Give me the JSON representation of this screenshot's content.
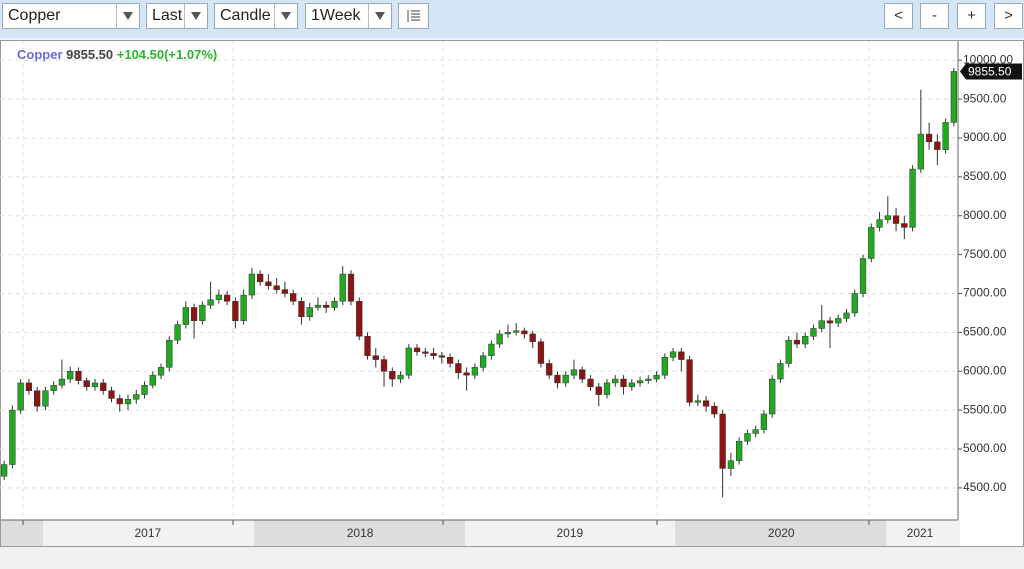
{
  "toolbar": {
    "symbol": "Copper",
    "field": "Last",
    "style": "Candle",
    "period": "1Week",
    "buttons": [
      "<",
      "-",
      "+",
      ">"
    ]
  },
  "chart_data": {
    "type": "candlestick",
    "title": "Copper",
    "last": {
      "value": 9855.5,
      "label": "9855.50"
    },
    "change": "+104.50(+1.07%)",
    "up_color": "#22a822",
    "down_color": "#8b1414",
    "grid": true,
    "ylim": [
      4100,
      10260
    ],
    "yticks": [
      {
        "value": 4500,
        "label": "4500.00"
      },
      {
        "value": 5000,
        "label": "5000.00"
      },
      {
        "value": 5500,
        "label": "5500.00"
      },
      {
        "value": 6000,
        "label": "6000.00"
      },
      {
        "value": 6500,
        "label": "6500.00"
      },
      {
        "value": 7000,
        "label": "7000.00"
      },
      {
        "value": 7500,
        "label": "7500.00"
      },
      {
        "value": 8000,
        "label": "8000.00"
      },
      {
        "value": 8500,
        "label": "8500.00"
      },
      {
        "value": 9000,
        "label": "9000.00"
      },
      {
        "value": 9500,
        "label": "9500.00"
      },
      {
        "value": 10000,
        "label": "10000.00"
      }
    ],
    "xlim": [
      0,
      116
    ],
    "xticks": [
      {
        "value": 17.9,
        "label": "2017"
      },
      {
        "value": 43.6,
        "label": "2018"
      },
      {
        "value": 69.0,
        "label": "2019"
      },
      {
        "value": 94.6,
        "label": "2020"
      },
      {
        "value": 111.4,
        "label": "2021"
      }
    ],
    "candles": [
      [
        4650,
        4850,
        4600,
        4800
      ],
      [
        4800,
        5560,
        4750,
        5500
      ],
      [
        5500,
        5900,
        5450,
        5850
      ],
      [
        5850,
        5900,
        5700,
        5750
      ],
      [
        5750,
        5800,
        5480,
        5550
      ],
      [
        5550,
        5800,
        5500,
        5750
      ],
      [
        5750,
        5870,
        5700,
        5820
      ],
      [
        5820,
        6150,
        5780,
        5900
      ],
      [
        5900,
        6060,
        5850,
        6000
      ],
      [
        6000,
        6050,
        5830,
        5880
      ],
      [
        5880,
        5920,
        5750,
        5800
      ],
      [
        5800,
        5900,
        5750,
        5850
      ],
      [
        5850,
        5900,
        5700,
        5750
      ],
      [
        5750,
        5800,
        5600,
        5650
      ],
      [
        5650,
        5700,
        5480,
        5580
      ],
      [
        5580,
        5700,
        5500,
        5640
      ],
      [
        5640,
        5760,
        5580,
        5700
      ],
      [
        5700,
        5870,
        5650,
        5820
      ],
      [
        5820,
        6000,
        5780,
        5950
      ],
      [
        5950,
        6100,
        5900,
        6050
      ],
      [
        6050,
        6450,
        6000,
        6400
      ],
      [
        6400,
        6650,
        6350,
        6600
      ],
      [
        6600,
        6900,
        6550,
        6820
      ],
      [
        6820,
        6870,
        6420,
        6650
      ],
      [
        6650,
        6900,
        6600,
        6850
      ],
      [
        6850,
        7150,
        6800,
        6920
      ],
      [
        6920,
        7050,
        6870,
        6980
      ],
      [
        6980,
        7030,
        6850,
        6900
      ],
      [
        6900,
        6950,
        6550,
        6650
      ],
      [
        6650,
        7050,
        6600,
        6980
      ],
      [
        6980,
        7330,
        6930,
        7250
      ],
      [
        7250,
        7300,
        7100,
        7150
      ],
      [
        7150,
        7250,
        7050,
        7100
      ],
      [
        7100,
        7200,
        7000,
        7050
      ],
      [
        7050,
        7150,
        6950,
        7000
      ],
      [
        7000,
        7050,
        6850,
        6900
      ],
      [
        6900,
        6950,
        6600,
        6700
      ],
      [
        6700,
        6880,
        6650,
        6820
      ],
      [
        6820,
        6950,
        6780,
        6850
      ],
      [
        6850,
        6900,
        6750,
        6820
      ],
      [
        6820,
        6950,
        6780,
        6900
      ],
      [
        6900,
        7350,
        6850,
        7250
      ],
      [
        7250,
        7300,
        6850,
        6900
      ],
      [
        6900,
        6950,
        6400,
        6450
      ],
      [
        6450,
        6500,
        6150,
        6200
      ],
      [
        6200,
        6300,
        6050,
        6150
      ],
      [
        6150,
        6200,
        5800,
        6000
      ],
      [
        6000,
        6050,
        5800,
        5900
      ],
      [
        5900,
        6000,
        5850,
        5950
      ],
      [
        5950,
        6350,
        5900,
        6300
      ],
      [
        6300,
        6350,
        6200,
        6250
      ],
      [
        6250,
        6300,
        6180,
        6230
      ],
      [
        6230,
        6300,
        6150,
        6200
      ],
      [
        6200,
        6250,
        6100,
        6180
      ],
      [
        6180,
        6230,
        6050,
        6100
      ],
      [
        6100,
        6150,
        5900,
        5980
      ],
      [
        5980,
        6050,
        5750,
        5950
      ],
      [
        5950,
        6100,
        5900,
        6050
      ],
      [
        6050,
        6250,
        6000,
        6200
      ],
      [
        6200,
        6400,
        6150,
        6350
      ],
      [
        6350,
        6530,
        6300,
        6480
      ],
      [
        6480,
        6600,
        6430,
        6500
      ],
      [
        6500,
        6620,
        6460,
        6520
      ],
      [
        6520,
        6560,
        6420,
        6480
      ],
      [
        6480,
        6520,
        6300,
        6380
      ],
      [
        6380,
        6420,
        6050,
        6100
      ],
      [
        6100,
        6150,
        5900,
        5950
      ],
      [
        5950,
        6000,
        5780,
        5850
      ],
      [
        5850,
        6000,
        5800,
        5950
      ],
      [
        5950,
        6150,
        5900,
        6020
      ],
      [
        6020,
        6060,
        5850,
        5900
      ],
      [
        5900,
        5950,
        5750,
        5800
      ],
      [
        5800,
        5850,
        5550,
        5700
      ],
      [
        5700,
        5900,
        5650,
        5850
      ],
      [
        5850,
        5950,
        5800,
        5900
      ],
      [
        5900,
        5950,
        5700,
        5800
      ],
      [
        5800,
        5900,
        5750,
        5850
      ],
      [
        5850,
        5930,
        5800,
        5880
      ],
      [
        5880,
        5950,
        5840,
        5900
      ],
      [
        5900,
        6000,
        5860,
        5950
      ],
      [
        5950,
        6230,
        5900,
        6180
      ],
      [
        6180,
        6300,
        6130,
        6250
      ],
      [
        6250,
        6300,
        6000,
        6150
      ],
      [
        6150,
        6200,
        5550,
        5600
      ],
      [
        5600,
        5700,
        5550,
        5620
      ],
      [
        5620,
        5680,
        5480,
        5550
      ],
      [
        5550,
        5600,
        5400,
        5450
      ],
      [
        5450,
        5500,
        4380,
        4750
      ],
      [
        4750,
        4950,
        4650,
        4850
      ],
      [
        4850,
        5150,
        4800,
        5100
      ],
      [
        5100,
        5250,
        5050,
        5200
      ],
      [
        5200,
        5300,
        5150,
        5250
      ],
      [
        5250,
        5500,
        5200,
        5450
      ],
      [
        5450,
        5950,
        5400,
        5900
      ],
      [
        5900,
        6150,
        5850,
        6100
      ],
      [
        6100,
        6450,
        6050,
        6400
      ],
      [
        6400,
        6500,
        6300,
        6350
      ],
      [
        6350,
        6500,
        6300,
        6450
      ],
      [
        6450,
        6600,
        6400,
        6550
      ],
      [
        6550,
        6850,
        6500,
        6650
      ],
      [
        6650,
        6700,
        6300,
        6620
      ],
      [
        6620,
        6730,
        6570,
        6680
      ],
      [
        6680,
        6800,
        6630,
        6750
      ],
      [
        6750,
        7050,
        6700,
        7000
      ],
      [
        7000,
        7500,
        6950,
        7450
      ],
      [
        7450,
        7900,
        7400,
        7850
      ],
      [
        7850,
        8050,
        7800,
        7950
      ],
      [
        7950,
        8250,
        7900,
        8000
      ],
      [
        8000,
        8100,
        7800,
        7900
      ],
      [
        7900,
        8000,
        7700,
        7850
      ],
      [
        7850,
        8650,
        7800,
        8600
      ],
      [
        8600,
        9620,
        8550,
        9050
      ],
      [
        9050,
        9200,
        8850,
        8950
      ],
      [
        8950,
        9050,
        8650,
        8850
      ],
      [
        8850,
        9250,
        8800,
        9200
      ],
      [
        9200,
        9900,
        9150,
        9855.5
      ]
    ]
  }
}
